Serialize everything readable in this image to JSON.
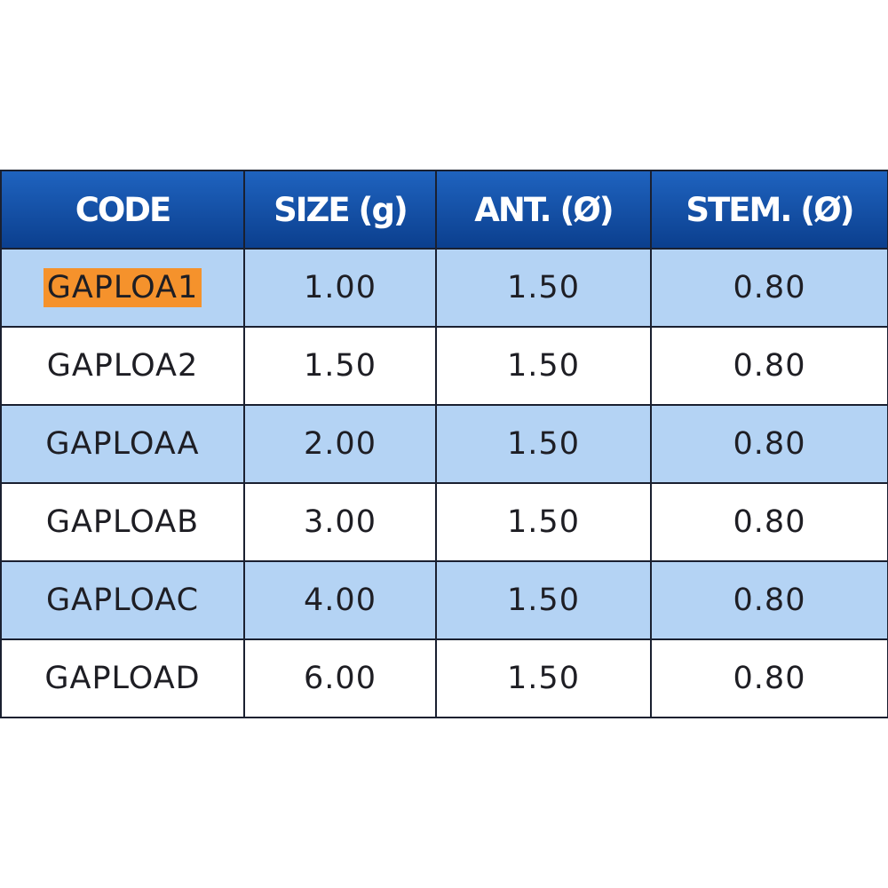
{
  "table": {
    "headers": [
      "CODE",
      "SIZE (g)",
      "ANT. (Ø)",
      "STEM. (Ø)"
    ],
    "rows": [
      [
        "GAPLOA1",
        "1.00",
        "1.50",
        "0.80"
      ],
      [
        "GAPLOA2",
        "1.50",
        "1.50",
        "0.80"
      ],
      [
        "GAPLOAA",
        "2.00",
        "1.50",
        "0.80"
      ],
      [
        "GAPLOAB",
        "3.00",
        "1.50",
        "0.80"
      ],
      [
        "GAPLOAC",
        "4.00",
        "1.50",
        "0.80"
      ],
      [
        "GAPLOAD",
        "6.00",
        "1.50",
        "0.80"
      ]
    ],
    "highlighted_cell": "GAPLOA1",
    "colors": {
      "header": "#0b3f8e",
      "alt_row": "#b4d3f4",
      "highlight": "#f5922c"
    }
  }
}
